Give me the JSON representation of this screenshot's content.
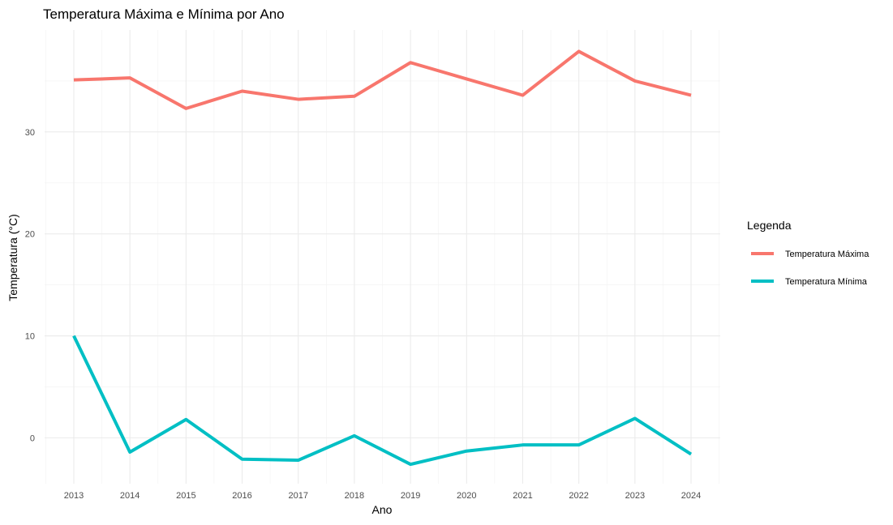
{
  "chart_data": {
    "type": "line",
    "title": "Temperatura Máxima e Mínima por Ano",
    "xlabel": "Ano",
    "ylabel": "Temperatura (°C)",
    "x": [
      2013,
      2014,
      2015,
      2016,
      2017,
      2018,
      2019,
      2020,
      2021,
      2022,
      2023,
      2024
    ],
    "x_ticks": [
      "2013",
      "2014",
      "2015",
      "2016",
      "2017",
      "2018",
      "2019",
      "2020",
      "2021",
      "2022",
      "2023",
      "2024"
    ],
    "y_ticks": [
      "0",
      "10",
      "20",
      "30"
    ],
    "ylim": [
      -4.5,
      40
    ],
    "grid": true,
    "legend": {
      "title": "Legenda",
      "position": "right"
    },
    "series": [
      {
        "name": "Temperatura Máxima",
        "color": "#F8766D",
        "values": [
          35.1,
          35.3,
          32.3,
          34.0,
          33.2,
          33.5,
          36.8,
          35.2,
          33.6,
          37.9,
          35.0,
          33.6
        ]
      },
      {
        "name": "Temperatura Mínima",
        "color": "#00BFC4",
        "values": [
          10.0,
          -1.4,
          1.8,
          -2.1,
          -2.2,
          0.2,
          -2.6,
          -1.3,
          -0.7,
          -0.7,
          1.9,
          -1.6
        ]
      }
    ]
  }
}
